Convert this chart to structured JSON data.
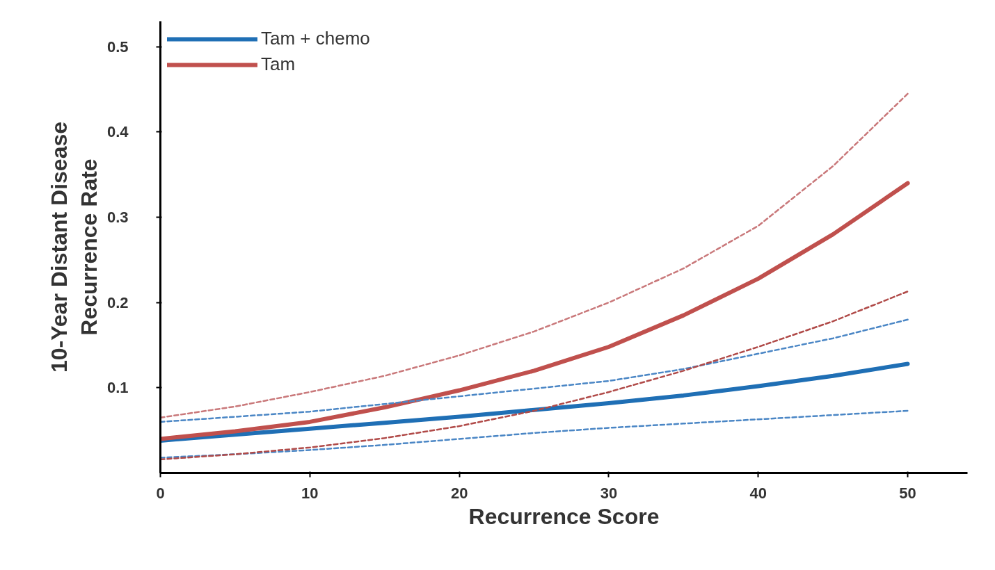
{
  "chart_data": {
    "type": "line",
    "xlabel": "Recurrence Score",
    "ylabel": "10-Year Distant Disease\nRecurrence Rate",
    "x": [
      0,
      5,
      10,
      15,
      20,
      25,
      30,
      35,
      40,
      45,
      50
    ],
    "xlim": [
      0,
      54
    ],
    "ylim": [
      0,
      0.53
    ],
    "xticks": [
      0,
      10,
      20,
      30,
      40,
      50
    ],
    "yticks": [
      0.1,
      0.2,
      0.3,
      0.4,
      0.5
    ],
    "grid": false,
    "legend": "top left",
    "marker": "none",
    "series": [
      {
        "name": "Tam + chemo",
        "color": "#1f6fb5",
        "line_style": "solid",
        "values": [
          0.038,
          0.045,
          0.052,
          0.059,
          0.066,
          0.074,
          0.082,
          0.091,
          0.102,
          0.114,
          0.128
        ]
      },
      {
        "name": "Tam",
        "color": "#c0504d",
        "line_style": "solid",
        "values": [
          0.04,
          0.049,
          0.06,
          0.077,
          0.097,
          0.12,
          0.148,
          0.185,
          0.228,
          0.28,
          0.34
        ]
      },
      {
        "color": "#4a86c5",
        "line_style": "dashed",
        "values": [
          0.06,
          0.066,
          0.072,
          0.081,
          0.09,
          0.099,
          0.108,
          0.122,
          0.14,
          0.158,
          0.18
        ]
      },
      {
        "color": "#4a86c5",
        "line_style": "dashed",
        "values": [
          0.018,
          0.022,
          0.027,
          0.033,
          0.04,
          0.047,
          0.053,
          0.058,
          0.063,
          0.068,
          0.073
        ]
      },
      {
        "color": "#c9787a",
        "line_style": "dashed",
        "values": [
          0.065,
          0.078,
          0.095,
          0.114,
          0.138,
          0.166,
          0.2,
          0.24,
          0.29,
          0.36,
          0.445
        ]
      },
      {
        "color": "#b04a48",
        "line_style": "dashed",
        "values": [
          0.016,
          0.022,
          0.03,
          0.041,
          0.055,
          0.073,
          0.095,
          0.12,
          0.148,
          0.178,
          0.213
        ]
      }
    ]
  }
}
